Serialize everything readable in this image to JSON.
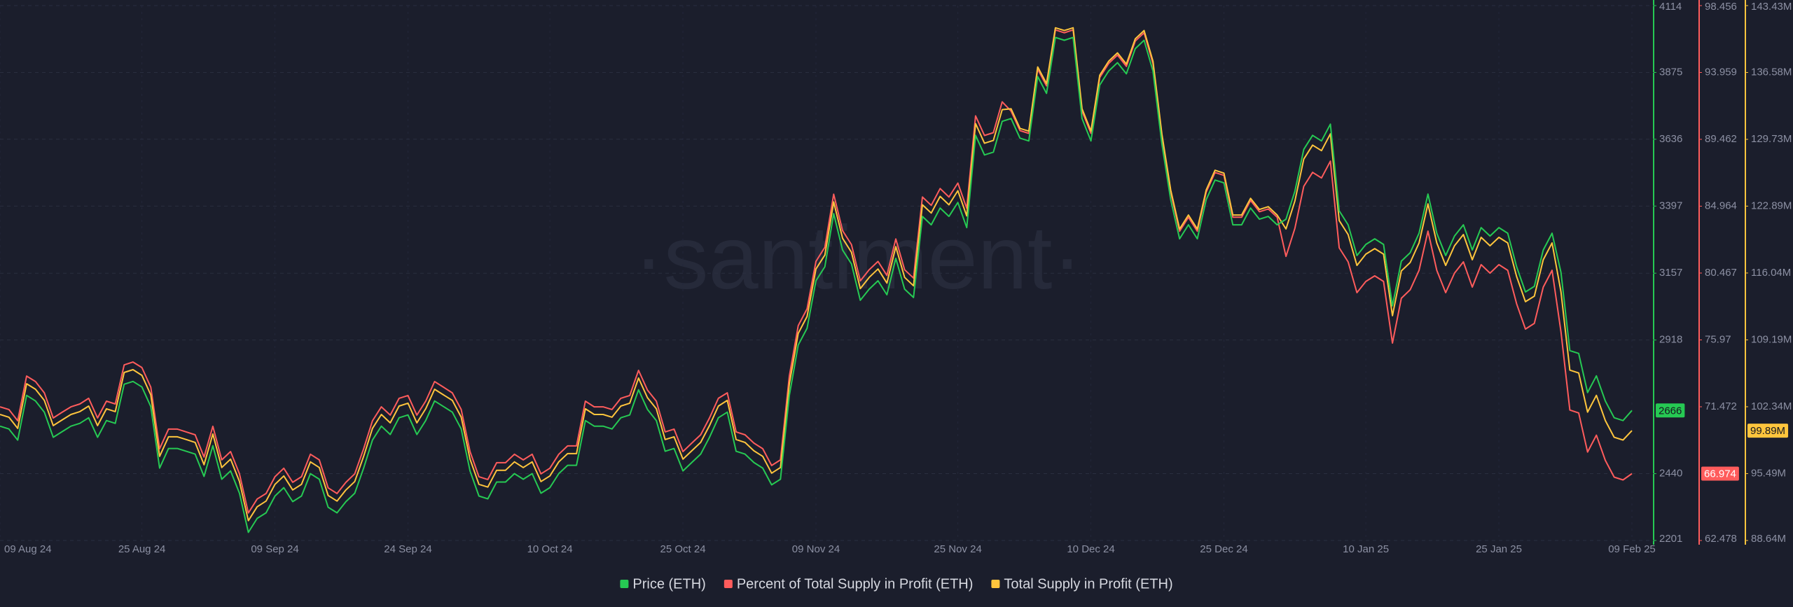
{
  "chart_data": {
    "type": "line",
    "watermark": "·santiment·",
    "categories": [
      "09 Aug 24",
      null,
      null,
      null,
      null,
      null,
      null,
      null,
      null,
      null,
      null,
      null,
      null,
      null,
      null,
      null,
      "25 Aug 24",
      null,
      null,
      null,
      null,
      null,
      null,
      null,
      null,
      null,
      null,
      null,
      null,
      null,
      null,
      "09 Sep 24",
      null,
      null,
      null,
      null,
      null,
      null,
      null,
      null,
      null,
      null,
      null,
      null,
      null,
      null,
      "24 Sep 24",
      null,
      null,
      null,
      null,
      null,
      null,
      null,
      null,
      null,
      null,
      null,
      null,
      null,
      null,
      null,
      "10 Oct 24",
      null,
      null,
      null,
      null,
      null,
      null,
      null,
      null,
      null,
      null,
      null,
      null,
      null,
      null,
      "25 Oct 24",
      null,
      null,
      null,
      null,
      null,
      null,
      null,
      null,
      null,
      null,
      null,
      null,
      null,
      null,
      "09 Nov 24",
      null,
      null,
      null,
      null,
      null,
      null,
      null,
      null,
      null,
      null,
      null,
      null,
      null,
      null,
      null,
      "25 Nov 24",
      null,
      null,
      null,
      null,
      null,
      null,
      null,
      null,
      null,
      null,
      null,
      null,
      null,
      null,
      "10 Dec 24",
      null,
      null,
      null,
      null,
      null,
      null,
      null,
      null,
      null,
      null,
      null,
      null,
      null,
      null,
      "25 Dec 24",
      null,
      null,
      null,
      null,
      null,
      null,
      null,
      null,
      null,
      null,
      null,
      null,
      null,
      null,
      null,
      "10 Jan 25",
      null,
      null,
      null,
      null,
      null,
      null,
      null,
      null,
      null,
      null,
      null,
      null,
      null,
      null,
      "25 Jan 25",
      null,
      null,
      null,
      null,
      null,
      null,
      null,
      null,
      null,
      null,
      null,
      null,
      null,
      null,
      "09 Feb 25"
    ],
    "series": [
      {
        "name": "Percent of Total Supply in Profit (ETH)",
        "color": "#ff5c5c",
        "axis": "y2",
        "values": [
          71.47,
          71.29,
          70.53,
          73.54,
          73.17,
          72.41,
          70.72,
          71.1,
          71.47,
          71.66,
          72.04,
          70.72,
          71.85,
          71.66,
          74.29,
          74.48,
          74.11,
          72.79,
          68.65,
          69.97,
          69.97,
          69.78,
          69.59,
          68.09,
          70.16,
          67.9,
          68.46,
          66.96,
          64.33,
          65.27,
          65.64,
          66.77,
          67.34,
          66.39,
          66.77,
          68.28,
          67.9,
          66.02,
          65.64,
          66.39,
          66.96,
          68.65,
          70.53,
          71.47,
          70.91,
          72.04,
          72.23,
          70.91,
          71.85,
          73.17,
          72.79,
          72.41,
          71.29,
          68.46,
          66.77,
          66.58,
          67.71,
          67.71,
          68.28,
          67.9,
          68.28,
          66.96,
          67.34,
          68.28,
          68.84,
          68.84,
          71.85,
          71.47,
          71.47,
          71.29,
          72.04,
          72.23,
          73.92,
          72.6,
          71.85,
          69.78,
          69.97,
          68.46,
          69.03,
          69.59,
          70.72,
          72.04,
          72.41,
          69.78,
          69.59,
          69.03,
          68.65,
          67.52,
          67.9,
          73.54,
          76.93,
          78.06,
          81.25,
          82.2,
          85.77,
          83.32,
          82.38,
          79.94,
          80.69,
          81.25,
          80.31,
          82.76,
          80.69,
          80.13,
          85.58,
          85.02,
          86.15,
          85.58,
          86.52,
          84.83,
          91.04,
          89.72,
          89.91,
          91.98,
          91.36,
          90.05,
          89.86,
          94.19,
          93.06,
          96.82,
          96.63,
          96.82,
          91.36,
          89.86,
          93.62,
          94.56,
          95.13,
          94.37,
          96.07,
          96.63,
          94.56,
          89.67,
          85.91,
          83.28,
          84.22,
          83.28,
          85.91,
          87.23,
          87.04,
          84.22,
          84.22,
          85.35,
          84.59,
          84.78,
          84.22,
          81.59,
          83.47,
          86.3,
          87.24,
          86.86,
          87.99,
          82.16,
          81.22,
          79.15,
          79.9,
          80.28,
          79.9,
          75.76,
          78.77,
          79.34,
          80.65,
          83.29,
          80.65,
          79.15,
          80.46,
          81.22,
          79.52,
          81.03,
          80.46,
          81.03,
          80.65,
          78.4,
          76.7,
          77.08,
          79.52,
          80.65,
          76.52,
          71.25,
          71.06,
          68.43,
          69.56,
          67.87,
          66.74,
          66.55,
          66.974
        ]
      },
      {
        "name": "Total Supply in Profit (ETH)",
        "color": "#ffc53d",
        "axis": "y3",
        "values": [
          101.55,
          101.27,
          100.12,
          104.7,
          104.13,
          102.99,
          100.41,
          100.98,
          101.55,
          101.84,
          102.41,
          100.41,
          102.13,
          101.84,
          105.85,
          106.14,
          105.56,
          103.56,
          97.26,
          99.26,
          99.26,
          98.98,
          98.69,
          96.4,
          99.55,
          96.11,
          96.97,
          94.68,
          90.67,
          92.1,
          92.68,
          94.39,
          95.25,
          93.82,
          94.39,
          96.69,
          96.11,
          93.25,
          92.68,
          93.82,
          94.68,
          97.26,
          100.12,
          101.55,
          100.69,
          102.41,
          102.7,
          100.69,
          102.13,
          104.13,
          103.56,
          102.99,
          101.27,
          96.97,
          94.39,
          94.11,
          95.83,
          95.83,
          96.69,
          96.11,
          96.69,
          94.68,
          95.25,
          96.69,
          97.54,
          97.54,
          102.13,
          101.55,
          101.55,
          101.27,
          102.41,
          102.7,
          105.28,
          103.27,
          102.13,
          98.98,
          99.26,
          96.97,
          97.83,
          98.69,
          100.41,
          102.41,
          102.99,
          98.98,
          98.69,
          97.83,
          97.26,
          95.54,
          96.11,
          104.7,
          109.86,
          111.58,
          116.45,
          117.88,
          123.32,
          119.6,
          118.16,
          114.44,
          115.59,
          116.45,
          115.01,
          118.74,
          115.59,
          114.73,
          123.03,
          122.18,
          123.89,
          123.03,
          124.47,
          121.89,
          131.34,
          129.33,
          129.62,
          132.77,
          132.86,
          130.85,
          130.57,
          137.15,
          135.44,
          141.16,
          140.88,
          141.16,
          132.86,
          130.57,
          136.3,
          137.73,
          138.59,
          137.44,
          140.02,
          140.88,
          137.73,
          130.28,
          124.55,
          120.54,
          121.98,
          120.54,
          124.55,
          126.56,
          126.27,
          121.98,
          121.98,
          123.69,
          122.55,
          122.83,
          121.98,
          120.55,
          123.41,
          127.71,
          129.14,
          128.57,
          130.29,
          121.41,
          119.98,
          116.82,
          117.97,
          118.54,
          117.97,
          111.67,
          116.25,
          117.11,
          119.12,
          123.12,
          119.12,
          116.82,
          118.83,
          119.98,
          117.4,
          119.69,
          118.83,
          119.69,
          119.12,
          115.68,
          113.1,
          113.67,
          117.4,
          119.12,
          114.11,
          106.09,
          105.8,
          101.79,
          103.51,
          100.93,
          99.21,
          98.93,
          99.89
        ],
        "value_labels": [
          null,
          null,
          null,
          null,
          null,
          null,
          null,
          null,
          null,
          null,
          null,
          null,
          null,
          null,
          null,
          null,
          null,
          null,
          null,
          null,
          null,
          null,
          null,
          null,
          null,
          null,
          null,
          null,
          null,
          null,
          null,
          null,
          null,
          null,
          null,
          null,
          null,
          null,
          null,
          null,
          null,
          null,
          null,
          null,
          null,
          null,
          null,
          null,
          null,
          null,
          null,
          null,
          null,
          null,
          null,
          null,
          null,
          null,
          null,
          null,
          null,
          null,
          null,
          null,
          null,
          null,
          null,
          null,
          null,
          null,
          null,
          null,
          null,
          null,
          null,
          null,
          null,
          null,
          null,
          null,
          null,
          null,
          null,
          null,
          null,
          null,
          null,
          null,
          null,
          null,
          null,
          null,
          null,
          null,
          null,
          null,
          null,
          null,
          null,
          null,
          null,
          null,
          null,
          null,
          null,
          null,
          null,
          null,
          null,
          null,
          null,
          null,
          null,
          null,
          null,
          null,
          null,
          null,
          null,
          null,
          null,
          null,
          null,
          null,
          null,
          null,
          null,
          null,
          null,
          null,
          null,
          null,
          null,
          null,
          null,
          null,
          null,
          null,
          null,
          null,
          null,
          null,
          null,
          null,
          null,
          null,
          null,
          null,
          null,
          null,
          null,
          null,
          null,
          null,
          null,
          null,
          null,
          null,
          null,
          null,
          null,
          null,
          null,
          null,
          null,
          null,
          null,
          null,
          null,
          null,
          null,
          null,
          null,
          null,
          null,
          null,
          null,
          null,
          null,
          null,
          null,
          null,
          null,
          null,
          "99.89M"
        ]
      },
      {
        "name": "Price (ETH)",
        "color": "#26c953",
        "axis": "y",
        "values": [
          2610,
          2600,
          2560,
          2720,
          2700,
          2660,
          2570,
          2590,
          2610,
          2620,
          2640,
          2570,
          2630,
          2620,
          2760,
          2770,
          2750,
          2680,
          2460,
          2530,
          2530,
          2520,
          2510,
          2430,
          2540,
          2420,
          2450,
          2370,
          2230,
          2280,
          2300,
          2360,
          2390,
          2340,
          2360,
          2440,
          2420,
          2320,
          2300,
          2340,
          2370,
          2460,
          2560,
          2610,
          2580,
          2640,
          2650,
          2580,
          2630,
          2700,
          2680,
          2660,
          2600,
          2450,
          2360,
          2350,
          2410,
          2410,
          2440,
          2420,
          2440,
          2370,
          2390,
          2440,
          2470,
          2470,
          2630,
          2610,
          2610,
          2600,
          2640,
          2650,
          2740,
          2670,
          2630,
          2520,
          2530,
          2450,
          2480,
          2510,
          2570,
          2640,
          2660,
          2520,
          2510,
          2480,
          2460,
          2400,
          2420,
          2720,
          2900,
          2960,
          3130,
          3180,
          3370,
          3240,
          3190,
          3060,
          3100,
          3130,
          3080,
          3210,
          3100,
          3070,
          3360,
          3330,
          3390,
          3360,
          3410,
          3320,
          3650,
          3580,
          3590,
          3700,
          3710,
          3640,
          3630,
          3860,
          3800,
          4000,
          3990,
          4000,
          3710,
          3630,
          3830,
          3880,
          3910,
          3870,
          3960,
          3990,
          3880,
          3620,
          3420,
          3280,
          3330,
          3280,
          3420,
          3490,
          3480,
          3330,
          3330,
          3390,
          3350,
          3360,
          3330,
          3350,
          3450,
          3600,
          3650,
          3630,
          3690,
          3380,
          3330,
          3220,
          3260,
          3280,
          3260,
          3040,
          3200,
          3230,
          3300,
          3440,
          3300,
          3220,
          3290,
          3330,
          3240,
          3320,
          3290,
          3320,
          3300,
          3180,
          3090,
          3110,
          3240,
          3300,
          3160,
          2880,
          2870,
          2730,
          2790,
          2700,
          2640,
          2630,
          2666
        ]
      }
    ],
    "legend_order": [
      2,
      0,
      1
    ],
    "ylim": [
      2201,
      4114
    ],
    "yticks": [
      2201,
      2440,
      2918,
      3157,
      3397,
      3636,
      3875,
      4114
    ],
    "y2lim": [
      62.478,
      98.456
    ],
    "y2ticks": [
      62.478,
      71.472,
      75.97,
      80.467,
      84.964,
      89.462,
      93.959,
      98.456
    ],
    "y3lim": [
      88.64,
      143.43
    ],
    "y3ticks": [
      {
        "value": 88.64,
        "label": "88.64M"
      },
      {
        "value": 95.49,
        "label": "95.49M"
      },
      {
        "value": 102.34,
        "label": "102.34M"
      },
      {
        "value": 109.19,
        "label": "109.19M"
      },
      {
        "value": 116.04,
        "label": "116.04M"
      },
      {
        "value": 122.89,
        "label": "122.89M"
      },
      {
        "value": 129.73,
        "label": "129.73M"
      },
      {
        "value": 136.58,
        "label": "136.58M"
      },
      {
        "value": 143.43,
        "label": "143.43M"
      }
    ],
    "grid": true
  }
}
